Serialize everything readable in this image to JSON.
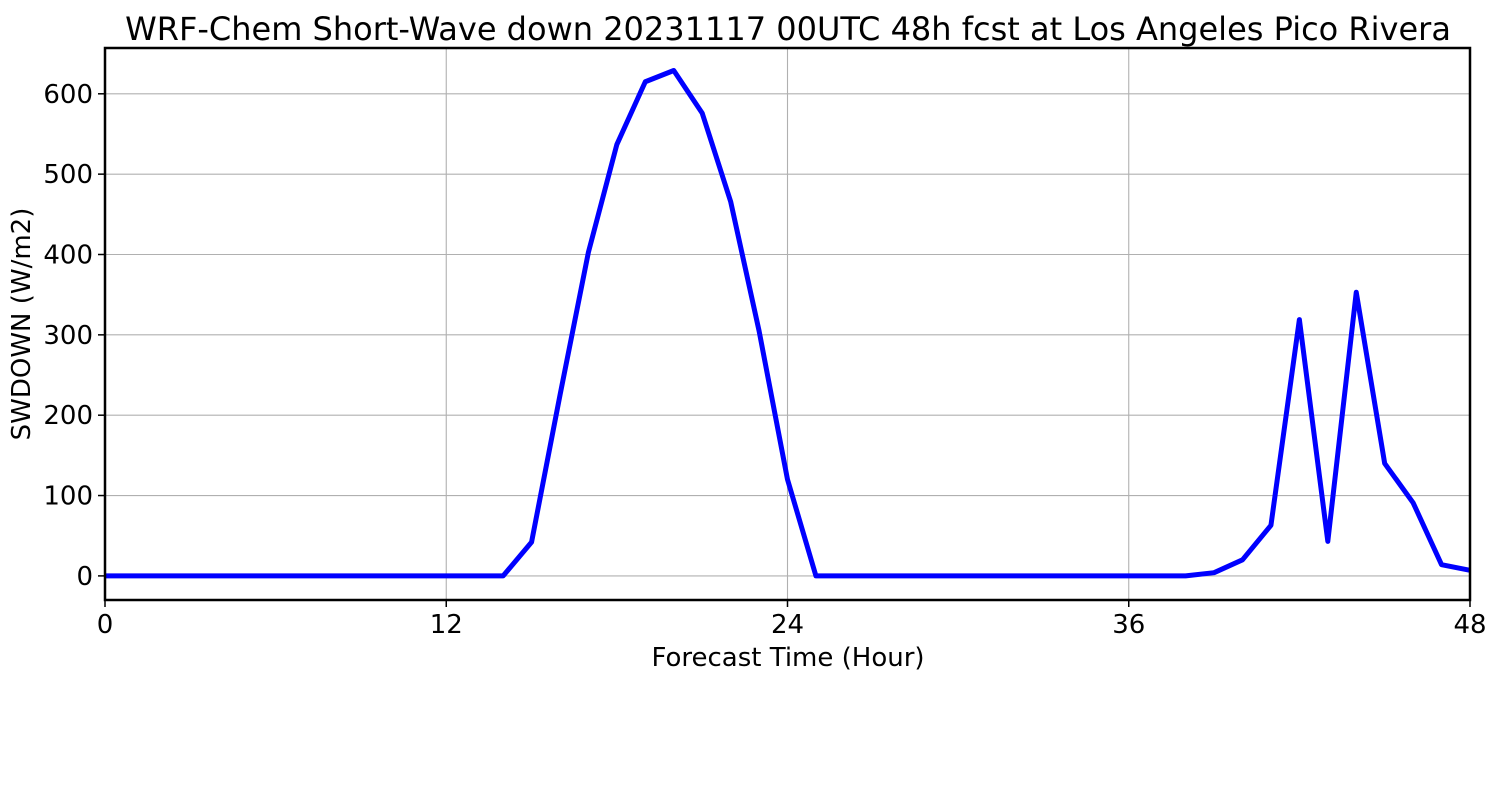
{
  "chart_data": {
    "type": "line",
    "title": "WRF-Chem Short-Wave down  20231117 00UTC 48h fcst at Los Angeles Pico Rivera",
    "xlabel": "Forecast Time (Hour)",
    "ylabel": "SWDOWN  (W/m2)",
    "xlim": [
      0,
      48
    ],
    "ylim": [
      -30,
      657
    ],
    "xticks": [
      0,
      12,
      24,
      36,
      48
    ],
    "yticks": [
      0,
      100,
      200,
      300,
      400,
      500,
      600
    ],
    "grid": true,
    "legend": "none",
    "series": [
      {
        "color": "#0000ff",
        "x": [
          0,
          1,
          2,
          3,
          4,
          5,
          6,
          7,
          8,
          9,
          10,
          11,
          12,
          13,
          14,
          15,
          16,
          17,
          18,
          19,
          20,
          21,
          22,
          23,
          24,
          25,
          26,
          27,
          28,
          29,
          30,
          31,
          32,
          33,
          34,
          35,
          36,
          37,
          38,
          39,
          40,
          41,
          42,
          43,
          44,
          45,
          46,
          47,
          48
        ],
        "y": [
          0,
          0,
          0,
          0,
          0,
          0,
          0,
          0,
          0,
          0,
          0,
          0,
          0,
          0,
          0,
          42,
          225,
          403,
          537,
          615,
          629,
          576,
          466,
          305,
          120,
          0,
          0,
          0,
          0,
          0,
          0,
          0,
          0,
          0,
          0,
          0,
          0,
          0,
          0,
          4,
          20,
          63,
          319,
          43,
          353,
          140,
          91,
          14,
          7
        ]
      }
    ]
  }
}
